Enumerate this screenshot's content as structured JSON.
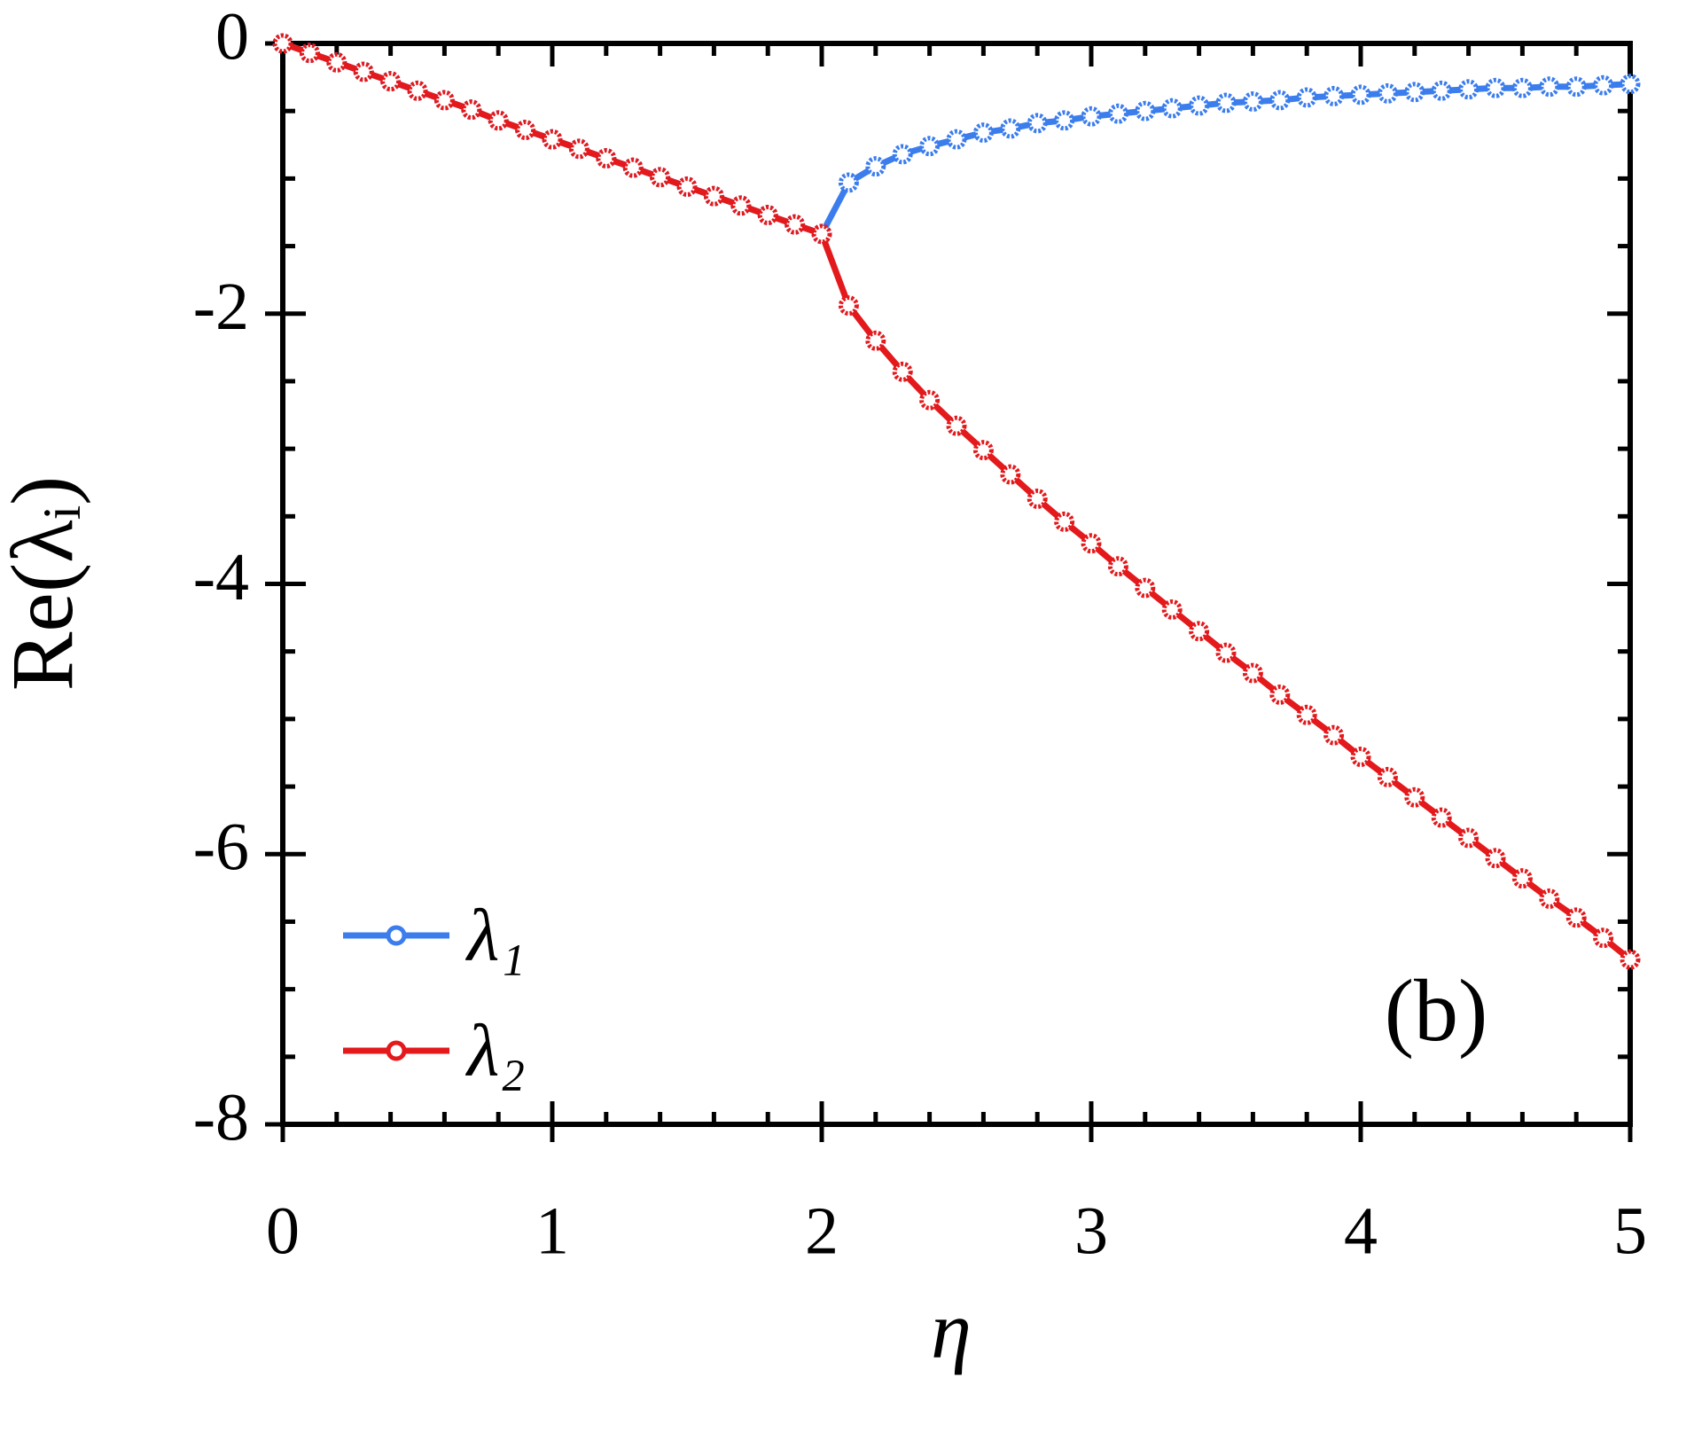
{
  "chart_data": {
    "type": "line",
    "x_label": "η",
    "y_label": "Re(λᵢ)",
    "annotation": "(b)",
    "x": [
      0,
      0.1,
      0.2,
      0.3,
      0.4,
      0.5,
      0.6,
      0.7,
      0.8,
      0.9,
      1,
      1.1,
      1.2,
      1.3,
      1.4,
      1.5,
      1.6,
      1.7,
      1.8,
      1.9,
      2,
      2.1,
      2.2,
      2.3,
      2.4,
      2.5,
      2.6,
      2.7,
      2.8,
      2.9,
      3,
      3.1,
      3.2,
      3.3,
      3.4,
      3.5,
      3.6,
      3.7,
      3.8,
      3.9,
      4,
      4.1,
      4.2,
      4.3,
      4.4,
      4.5,
      4.6,
      4.7,
      4.8,
      4.9,
      5
    ],
    "series": [
      {
        "name": "λ₁",
        "color": "#3b7ded",
        "values": [
          0,
          -0.07,
          -0.14,
          -0.21,
          -0.28,
          -0.35,
          -0.42,
          -0.49,
          -0.57,
          -0.64,
          -0.71,
          -0.78,
          -0.85,
          -0.92,
          -0.99,
          -1.06,
          -1.13,
          -1.2,
          -1.27,
          -1.34,
          -1.41,
          -1.03,
          -0.91,
          -0.82,
          -0.76,
          -0.71,
          -0.66,
          -0.63,
          -0.59,
          -0.57,
          -0.54,
          -0.52,
          -0.5,
          -0.48,
          -0.46,
          -0.44,
          -0.43,
          -0.42,
          -0.4,
          -0.39,
          -0.38,
          -0.37,
          -0.36,
          -0.35,
          -0.34,
          -0.33,
          -0.33,
          -0.32,
          -0.32,
          -0.31,
          -0.3
        ]
      },
      {
        "name": "λ₂",
        "color": "#e3191c",
        "values": [
          0,
          -0.07,
          -0.14,
          -0.21,
          -0.28,
          -0.35,
          -0.42,
          -0.49,
          -0.57,
          -0.64,
          -0.71,
          -0.78,
          -0.85,
          -0.92,
          -0.99,
          -1.06,
          -1.13,
          -1.2,
          -1.27,
          -1.34,
          -1.41,
          -1.94,
          -2.2,
          -2.43,
          -2.64,
          -2.83,
          -3.01,
          -3.19,
          -3.37,
          -3.54,
          -3.7,
          -3.87,
          -4.03,
          -4.19,
          -4.35,
          -4.51,
          -4.66,
          -4.82,
          -4.97,
          -5.12,
          -5.28,
          -5.43,
          -5.58,
          -5.73,
          -5.88,
          -6.03,
          -6.18,
          -6.33,
          -6.47,
          -6.62,
          -6.78
        ]
      }
    ],
    "xlim": [
      0,
      5
    ],
    "ylim": [
      -8,
      0
    ],
    "xticks": [
      0,
      1,
      2,
      3,
      4,
      5
    ],
    "yticks": [
      -8,
      -6,
      -4,
      -2,
      0
    ],
    "x_minor_ticks": [
      0.2,
      0.4,
      0.6,
      0.8,
      1.2,
      1.4,
      1.6,
      1.8,
      2.2,
      2.4,
      2.6,
      2.8,
      3.2,
      3.4,
      3.6,
      3.8,
      4.2,
      4.4,
      4.6,
      4.8
    ],
    "y_minor_ticks": [
      -7.5,
      -7,
      -6.5,
      -5.5,
      -5,
      -4.5,
      -3.5,
      -3,
      -2.5,
      -1.5,
      -1,
      -0.5
    ],
    "legend": "lower left"
  }
}
